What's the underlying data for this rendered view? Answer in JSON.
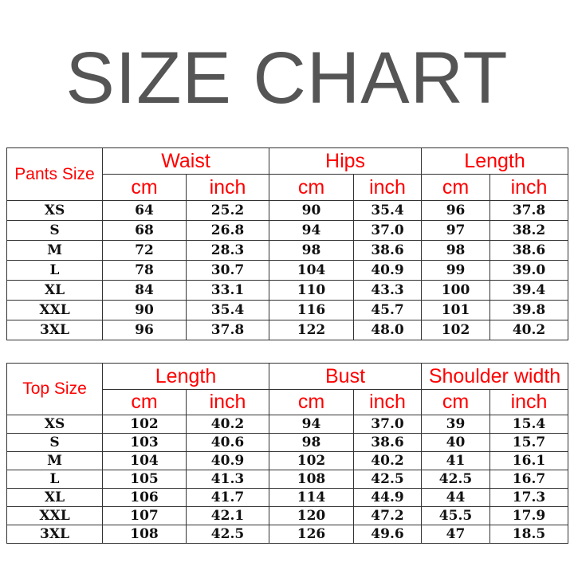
{
  "title": "SIZE CHART",
  "colors": {
    "header_text": "#ff0000",
    "title_text": "#555555",
    "border": "#333333"
  },
  "tables": [
    {
      "label": "Pants Size",
      "groups": [
        "Waist",
        "Hips",
        "Length"
      ],
      "units": [
        "cm",
        "inch",
        "cm",
        "inch",
        "cm",
        "inch"
      ],
      "rows": [
        [
          "XS",
          "64",
          "25.2",
          "90",
          "35.4",
          "96",
          "37.8"
        ],
        [
          "S",
          "68",
          "26.8",
          "94",
          "37.0",
          "97",
          "38.2"
        ],
        [
          "M",
          "72",
          "28.3",
          "98",
          "38.6",
          "98",
          "38.6"
        ],
        [
          "L",
          "78",
          "30.7",
          "104",
          "40.9",
          "99",
          "39.0"
        ],
        [
          "XL",
          "84",
          "33.1",
          "110",
          "43.3",
          "100",
          "39.4"
        ],
        [
          "XXL",
          "90",
          "35.4",
          "116",
          "45.7",
          "101",
          "39.8"
        ],
        [
          "3XL",
          "96",
          "37.8",
          "122",
          "48.0",
          "102",
          "40.2"
        ]
      ]
    },
    {
      "label": "Top Size",
      "groups": [
        "Length",
        "Bust",
        "Shoulder width"
      ],
      "units": [
        "cm",
        "inch",
        "cm",
        "inch",
        "cm",
        "inch"
      ],
      "rows": [
        [
          "XS",
          "102",
          "40.2",
          "94",
          "37.0",
          "39",
          "15.4"
        ],
        [
          "S",
          "103",
          "40.6",
          "98",
          "38.6",
          "40",
          "15.7"
        ],
        [
          "M",
          "104",
          "40.9",
          "102",
          "40.2",
          "41",
          "16.1"
        ],
        [
          "L",
          "105",
          "41.3",
          "108",
          "42.5",
          "42.5",
          "16.7"
        ],
        [
          "XL",
          "106",
          "41.7",
          "114",
          "44.9",
          "44",
          "17.3"
        ],
        [
          "XXL",
          "107",
          "42.1",
          "120",
          "47.2",
          "45.5",
          "17.9"
        ],
        [
          "3XL",
          "108",
          "42.5",
          "126",
          "49.6",
          "47",
          "18.5"
        ]
      ]
    }
  ]
}
